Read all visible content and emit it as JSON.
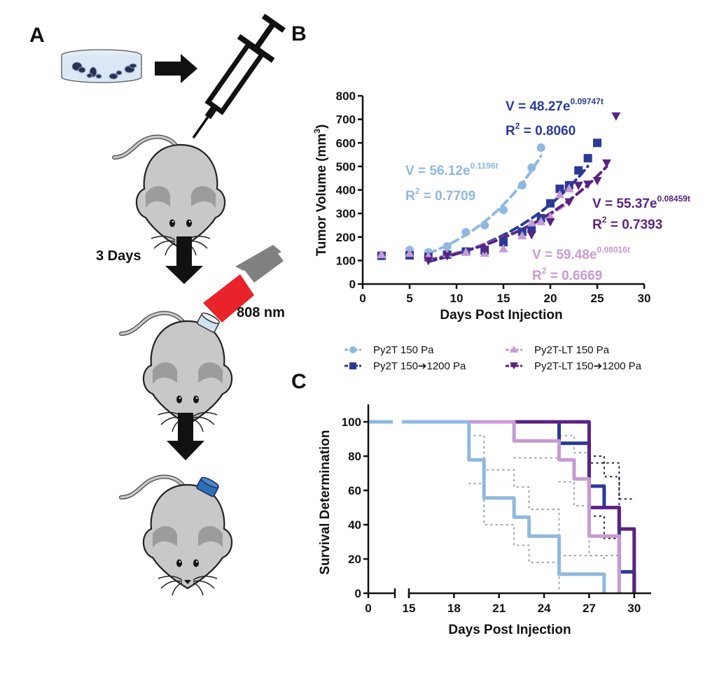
{
  "panels": {
    "a": {
      "label": "A",
      "step1_caption": "3 Days",
      "laser_label": "808 nm",
      "colors": {
        "mouse": "#c8c8c8",
        "laser_beam": "#e8232a",
        "laser_body": "#808080",
        "gel_clear": "#cfe3f3",
        "gel_blue": "#2f6fb8"
      }
    },
    "b": {
      "label": "B"
    },
    "c": {
      "label": "C"
    }
  },
  "legend": [
    {
      "name": "Py2T 150 Pa",
      "color": "#8fb8e0",
      "marker": "circle"
    },
    {
      "name": "Py2T 150➔1200 Pa",
      "color": "#2b3a96",
      "marker": "square"
    },
    {
      "name": "Py2T-LT 150 Pa",
      "color": "#c79ad3",
      "marker": "triangle-up"
    },
    {
      "name": "Py2T-LT 150➔1200 Pa",
      "color": "#5b2381",
      "marker": "triangle-down"
    }
  ],
  "chart_data": [
    {
      "id": "tumor-volume",
      "type": "scatter",
      "title": "",
      "xlabel": "Days Post Injection",
      "ylabel": "Tumor Volume (mm³)",
      "ylabel_base": "Tumor Volume (mm",
      "ylabel_sup": "3",
      "ylabel_close": ")",
      "xlim": [
        0,
        30
      ],
      "ylim": [
        0,
        800
      ],
      "xticks": [
        0,
        5,
        10,
        15,
        20,
        25,
        30
      ],
      "yticks": [
        0,
        100,
        200,
        300,
        400,
        500,
        600,
        700,
        800
      ],
      "grid": false,
      "series": [
        {
          "name": "Py2T 150 Pa",
          "color": "#8fb8e0",
          "marker": "circle",
          "fit": {
            "a": 56.12,
            "b": 0.1196,
            "r2": 0.7709,
            "range": [
              7,
              19
            ]
          },
          "equation": "V = 56.12e",
          "exponent": "0.1196t",
          "r2_label": "R",
          "r2_value": " = 0.7709",
          "x": [
            2,
            5,
            7,
            9,
            11,
            13,
            15,
            17,
            18,
            19
          ],
          "y": [
            122,
            145,
            135,
            160,
            220,
            250,
            315,
            420,
            495,
            580
          ]
        },
        {
          "name": "Py2T 150➔1200 Pa",
          "color": "#2b3a96",
          "marker": "square",
          "fit": {
            "a": 48.27,
            "b": 0.09747,
            "r2": 0.806,
            "range": [
              7,
              24
            ]
          },
          "equation": "V = 48.27e",
          "exponent": "0.09747t",
          "r2_label": "R",
          "r2_value": " = 0.8060",
          "x": [
            2,
            5,
            7,
            9,
            11,
            13,
            15,
            17,
            18,
            19,
            20,
            21,
            22,
            23,
            24,
            25
          ],
          "y": [
            120,
            122,
            115,
            125,
            138,
            143,
            178,
            222,
            235,
            280,
            343,
            405,
            420,
            483,
            535,
            600
          ]
        },
        {
          "name": "Py2T-LT 150 Pa",
          "color": "#c79ad3",
          "marker": "triangle-up",
          "fit": {
            "a": 59.48,
            "b": 0.08016,
            "r2": 0.6669,
            "range": [
              7,
              22
            ]
          },
          "equation": "V = 59.48e",
          "exponent": "0.08016t",
          "r2_label": "R",
          "r2_value": " = 0.6669",
          "x": [
            2,
            5,
            7,
            9,
            11,
            13,
            15,
            17,
            18,
            19,
            20,
            21,
            22
          ],
          "y": [
            125,
            130,
            118,
            128,
            135,
            130,
            150,
            205,
            260,
            265,
            285,
            380,
            405
          ]
        },
        {
          "name": "Py2T-LT 150➔1200 Pa",
          "color": "#5b2381",
          "marker": "triangle-down",
          "fit": {
            "a": 55.37,
            "b": 0.08459,
            "r2": 0.7393,
            "range": [
              7,
              26
            ]
          },
          "equation": "V = 55.37e",
          "exponent": "0.08459t",
          "r2_label": "R",
          "r2_value": " = 0.7393",
          "x": [
            7,
            9,
            13,
            18,
            20,
            22,
            23,
            24,
            25,
            26,
            27
          ],
          "y": [
            100,
            120,
            148,
            210,
            265,
            350,
            420,
            425,
            440,
            515,
            715
          ]
        }
      ]
    },
    {
      "id": "survival",
      "type": "line",
      "subtype": "kaplan-meier",
      "title": "",
      "xlabel": "Days Post Injection",
      "ylabel": "Survival Determination",
      "xlim": [
        0,
        31
      ],
      "axis_break": [
        11,
        15
      ],
      "ylim": [
        0,
        100
      ],
      "xticks": [
        0,
        15,
        18,
        21,
        24,
        27,
        30
      ],
      "yticks": [
        0,
        20,
        40,
        60,
        80,
        100
      ],
      "grid": false,
      "series": [
        {
          "name": "Py2T 150 Pa",
          "color": "#8fb8e0",
          "steps": [
            [
              0,
              100
            ],
            [
              19,
              77.8
            ],
            [
              20,
              55.6
            ],
            [
              22,
              44.4
            ],
            [
              23,
              33.3
            ],
            [
              25,
              11.1
            ],
            [
              28,
              0
            ]
          ],
          "ci_upper": [
            [
              19,
              92
            ],
            [
              20,
              72
            ],
            [
              22,
              62
            ],
            [
              23,
              49
            ],
            [
              25,
              22
            ],
            [
              28,
              18
            ]
          ],
          "ci_lower": [
            [
              19,
              64
            ],
            [
              20,
              40
            ],
            [
              22,
              28
            ],
            [
              23,
              18
            ],
            [
              25,
              0
            ]
          ]
        },
        {
          "name": "Py2T 150➔1200 Pa",
          "color": "#2b3a96",
          "steps": [
            [
              19,
              100
            ],
            [
              25,
              87.5
            ],
            [
              27,
              62.5
            ],
            [
              28,
              50
            ],
            [
              29,
              12.5
            ],
            [
              30,
              0
            ]
          ],
          "ci_upper": [
            [
              27,
              80
            ],
            [
              28,
              68
            ],
            [
              29,
              55
            ],
            [
              30,
              55
            ]
          ],
          "ci_lower": [
            [
              27,
              45
            ],
            [
              28,
              32
            ],
            [
              29,
              0
            ]
          ]
        },
        {
          "name": "Py2T-LT 150 Pa",
          "color": "#c79ad3",
          "steps": [
            [
              19,
              100
            ],
            [
              22,
              88.9
            ],
            [
              25,
              77.8
            ],
            [
              26,
              66.7
            ],
            [
              27,
              33.3
            ],
            [
              29,
              0
            ]
          ],
          "ci_upper": [
            [
              22,
              79
            ],
            [
              25,
              92
            ],
            [
              26,
              82
            ],
            [
              27,
              50
            ]
          ],
          "ci_lower": [
            [
              25,
              65
            ],
            [
              26,
              51
            ],
            [
              27,
              22
            ],
            [
              29,
              0
            ]
          ]
        },
        {
          "name": "Py2T-LT 150➔1200 Pa",
          "color": "#5b2381",
          "steps": [
            [
              19,
              100
            ],
            [
              27,
              50
            ],
            [
              29,
              37.5
            ],
            [
              30,
              0
            ]
          ],
          "ci_upper": [
            [
              25,
              100
            ],
            [
              27,
              76
            ],
            [
              29,
              24
            ]
          ],
          "ci_lower": [
            [
              27,
              33
            ],
            [
              29,
              20
            ]
          ]
        }
      ]
    }
  ]
}
